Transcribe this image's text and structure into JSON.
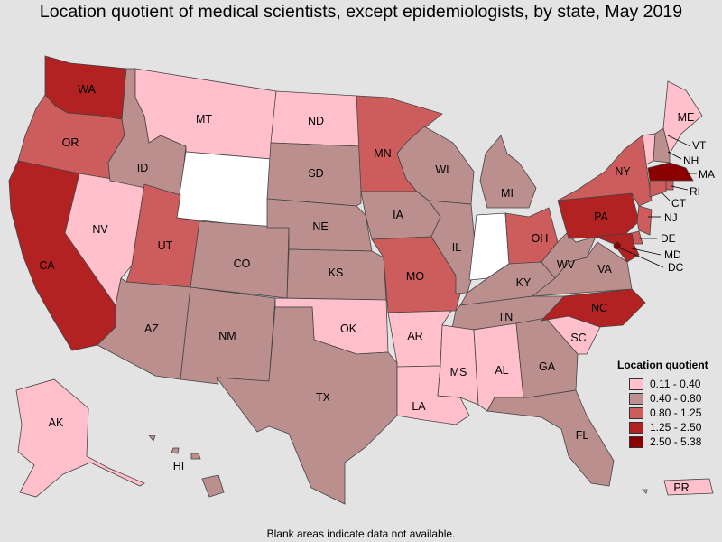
{
  "title": "Location quotient of medical scientists, except epidemiologists, by state, May 2019",
  "footnote": "Blank areas indicate data not available.",
  "legend": {
    "title": "Location quotient",
    "items": [
      {
        "label": "0.11 - 0.40",
        "color": "#ffc0cb"
      },
      {
        "label": "0.40 - 0.80",
        "color": "#bc8f8f"
      },
      {
        "label": "0.80 - 1.25",
        "color": "#cd5c5c"
      },
      {
        "label": "1.25 - 2.50",
        "color": "#b22222"
      },
      {
        "label": "2.50 - 5.38",
        "color": "#8b0000"
      }
    ]
  },
  "no_data_color": "#ffffff",
  "states": {
    "WA": 3,
    "OR": 2,
    "CA": 3,
    "NV": 0,
    "ID": 1,
    "MT": 0,
    "WY": null,
    "UT": 2,
    "AZ": 1,
    "CO": 1,
    "NM": 1,
    "ND": 0,
    "SD": 1,
    "NE": 1,
    "KS": 1,
    "OK": 0,
    "TX": 1,
    "MN": 2,
    "IA": 1,
    "MO": 2,
    "AR": 0,
    "LA": 0,
    "WI": 1,
    "IL": 1,
    "MI": 1,
    "IN": null,
    "OH": 2,
    "KY": 1,
    "TN": 1,
    "MS": 0,
    "AL": 0,
    "GA": 1,
    "FL": 1,
    "SC": 0,
    "NC": 3,
    "VA": 1,
    "WV": 1,
    "PA": 3,
    "NY": 2,
    "ME": 0,
    "VT": 0,
    "NH": 1,
    "MA": 4,
    "RI": 2,
    "CT": 2,
    "NJ": 2,
    "DE": 2,
    "MD": 3,
    "DC": 4,
    "AK": 0,
    "HI": 1,
    "PR": 0
  }
}
